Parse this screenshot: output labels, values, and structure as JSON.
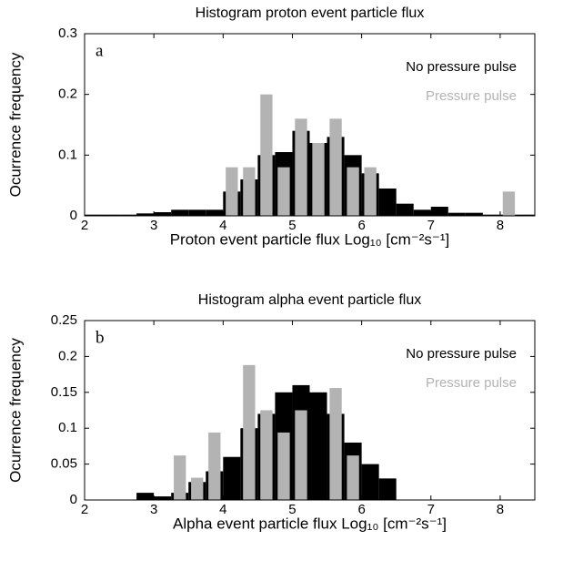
{
  "chart_data": [
    {
      "type": "histogram",
      "panel": "a",
      "title": "Histogram proton event particle flux",
      "x_label": "Proton event particle flux Log₁₀ [cm⁻²s⁻¹]",
      "y_label": "Ocurrence frequency",
      "bins": [
        2,
        2.25,
        2.5,
        2.75,
        3,
        3.25,
        3.5,
        3.75,
        4,
        4.25,
        4.5,
        4.75,
        5,
        5.25,
        5.5,
        5.75,
        6,
        6.25,
        6.5,
        6.75,
        7,
        7.25,
        7.5,
        7.75,
        8,
        8.25,
        8.5
      ],
      "series": [
        {
          "name": "No pressure pulse",
          "color": "#000000",
          "values": [
            0.002,
            0.002,
            0.002,
            0.004,
            0.006,
            0.01,
            0.01,
            0.01,
            0.04,
            0.06,
            0.1,
            0.105,
            0.14,
            0.12,
            0.13,
            0.1,
            0.07,
            0.045,
            0.02,
            0.01,
            0.015,
            0.005,
            0.005,
            0.002,
            0.002,
            0.002
          ]
        },
        {
          "name": "Pressure pulse",
          "color": "#b3b3b3",
          "values": [
            0,
            0,
            0,
            0,
            0,
            0,
            0,
            0,
            0.08,
            0.08,
            0.2,
            0.08,
            0.16,
            0.12,
            0.16,
            0.08,
            0.08,
            0,
            0,
            0,
            0,
            0,
            0,
            0,
            0.04,
            0
          ]
        }
      ],
      "xlim": [
        2,
        8.5
      ],
      "xticks": [
        2,
        3,
        4,
        5,
        6,
        7,
        8
      ],
      "ylim": [
        0,
        0.3
      ],
      "yticks": [
        0,
        0.1,
        0.2,
        0.3
      ],
      "legend": "upper right"
    },
    {
      "type": "histogram",
      "panel": "b",
      "title": "Histogram alpha event particle flux",
      "x_label": "Alpha event particle flux Log₁₀ [cm⁻²s⁻¹]",
      "y_label": "Ocurrence frequency",
      "bins": [
        2,
        2.25,
        2.5,
        2.75,
        3,
        3.25,
        3.5,
        3.75,
        4,
        4.25,
        4.5,
        4.75,
        5,
        5.25,
        5.5,
        5.75,
        6,
        6.25,
        6.5,
        6.75,
        7,
        7.25,
        7.5,
        7.75,
        8,
        8.25,
        8.5
      ],
      "series": [
        {
          "name": "No pressure pulse",
          "color": "#000000",
          "values": [
            0,
            0,
            0,
            0.01,
            0.005,
            0.01,
            0.025,
            0.04,
            0.06,
            0.1,
            0.12,
            0.15,
            0.16,
            0.15,
            0.12,
            0.08,
            0.05,
            0.03,
            0,
            0,
            0,
            0,
            0,
            0,
            0,
            0
          ]
        },
        {
          "name": "Pressure pulse",
          "color": "#b3b3b3",
          "values": [
            0,
            0,
            0,
            0,
            0,
            0.062,
            0.031,
            0.094,
            0,
            0.188,
            0.125,
            0.094,
            0.125,
            0,
            0.156,
            0.062,
            0,
            0,
            0,
            0,
            0,
            0,
            0,
            0,
            0,
            0
          ]
        }
      ],
      "xlim": [
        2,
        8.5
      ],
      "xticks": [
        2,
        3,
        4,
        5,
        6,
        7,
        8
      ],
      "ylim": [
        0,
        0.25
      ],
      "yticks": [
        0,
        0.05,
        0.1,
        0.15,
        0.2,
        0.25
      ],
      "legend": "upper right"
    }
  ]
}
